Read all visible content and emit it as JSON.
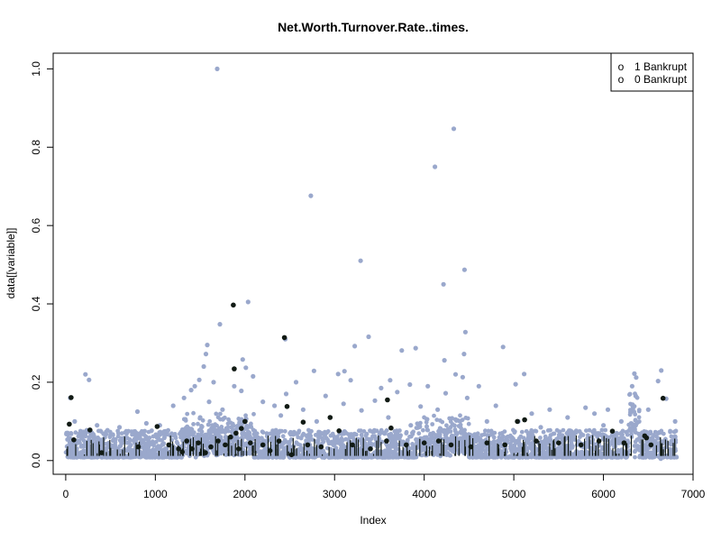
{
  "chart_data": {
    "type": "scatter",
    "title": "Net.Worth.Turnover.Rate..times.",
    "xlabel": "Index",
    "ylabel": "data[[variable]]",
    "xlim": [
      -140,
      7000
    ],
    "ylim": [
      -0.035,
      1.04
    ],
    "xticks": [
      0,
      1000,
      2000,
      3000,
      4000,
      5000,
      6000,
      7000
    ],
    "xtick_labels": [
      "0",
      "1000",
      "2000",
      "3000",
      "4000",
      "5000",
      "6000",
      "7000"
    ],
    "yticks": [
      0.0,
      0.2,
      0.4,
      0.6,
      0.8,
      1.0
    ],
    "ytick_labels": [
      "0.0",
      "0.2",
      "0.4",
      "0.6",
      "0.8",
      "1.0"
    ],
    "grid": false,
    "legend": {
      "position": "top-right",
      "entries": [
        {
          "label": "1 Bankrupt",
          "symbol": "o"
        },
        {
          "label": "0 Bankrupt",
          "symbol": "o"
        }
      ]
    },
    "series": [
      {
        "color": "#9aa8cc",
        "points": [
          [
            1690,
            1.0
          ],
          [
            4330,
            0.847
          ],
          [
            4120,
            0.75
          ],
          [
            2735,
            0.676
          ],
          [
            3290,
            0.51
          ],
          [
            4450,
            0.487
          ],
          [
            4215,
            0.45
          ],
          [
            2035,
            0.405
          ],
          [
            1720,
            0.348
          ],
          [
            4460,
            0.328
          ],
          [
            3380,
            0.316
          ],
          [
            2450,
            0.31
          ],
          [
            1580,
            0.295
          ],
          [
            3905,
            0.287
          ],
          [
            3225,
            0.292
          ],
          [
            4880,
            0.29
          ],
          [
            3750,
            0.281
          ],
          [
            4445,
            0.272
          ],
          [
            1565,
            0.272
          ],
          [
            1975,
            0.258
          ],
          [
            4225,
            0.256
          ],
          [
            2010,
            0.237
          ],
          [
            1540,
            0.24
          ],
          [
            2770,
            0.229
          ],
          [
            3110,
            0.228
          ],
          [
            3040,
            0.221
          ],
          [
            6345,
            0.222
          ],
          [
            6645,
            0.23
          ],
          [
            5115,
            0.221
          ],
          [
            220,
            0.22
          ],
          [
            260,
            0.206
          ],
          [
            2090,
            0.215
          ],
          [
            1490,
            0.206
          ],
          [
            4350,
            0.22
          ],
          [
            4430,
            0.213
          ],
          [
            6365,
            0.212
          ],
          [
            6610,
            0.203
          ],
          [
            1650,
            0.2
          ],
          [
            3180,
            0.205
          ],
          [
            3620,
            0.205
          ],
          [
            2570,
            0.2
          ],
          [
            3840,
            0.194
          ],
          [
            5020,
            0.195
          ],
          [
            1440,
            0.19
          ],
          [
            1880,
            0.19
          ],
          [
            3520,
            0.185
          ],
          [
            4040,
            0.19
          ],
          [
            4610,
            0.19
          ],
          [
            6320,
            0.19
          ],
          [
            1400,
            0.18
          ],
          [
            1960,
            0.178
          ],
          [
            2460,
            0.17
          ],
          [
            2900,
            0.165
          ],
          [
            3700,
            0.175
          ],
          [
            4240,
            0.172
          ],
          [
            50,
            0.16
          ],
          [
            1320,
            0.16
          ],
          [
            1600,
            0.15
          ],
          [
            2200,
            0.15
          ],
          [
            3450,
            0.153
          ],
          [
            4480,
            0.16
          ],
          [
            6360,
            0.165
          ],
          [
            6700,
            0.158
          ],
          [
            1200,
            0.14
          ],
          [
            2330,
            0.14
          ],
          [
            3100,
            0.145
          ],
          [
            3960,
            0.138
          ],
          [
            4800,
            0.14
          ],
          [
            5400,
            0.13
          ],
          [
            5800,
            0.135
          ],
          [
            6050,
            0.13
          ],
          [
            800,
            0.125
          ],
          [
            1750,
            0.13
          ],
          [
            2650,
            0.13
          ],
          [
            3300,
            0.128
          ],
          [
            4150,
            0.13
          ],
          [
            5200,
            0.12
          ],
          [
            5900,
            0.12
          ],
          [
            6500,
            0.13
          ],
          [
            6800,
            0.1
          ],
          [
            100,
            0.1
          ],
          [
            350,
            0.09
          ],
          [
            600,
            0.085
          ],
          [
            900,
            0.095
          ],
          [
            1050,
            0.09
          ],
          [
            1500,
            0.11
          ],
          [
            2400,
            0.115
          ],
          [
            2800,
            0.1
          ],
          [
            3600,
            0.11
          ],
          [
            4350,
            0.105
          ],
          [
            4700,
            0.1
          ],
          [
            5050,
            0.1
          ],
          [
            5600,
            0.11
          ],
          [
            6200,
            0.1
          ],
          [
            6640,
            0.005
          ],
          [
            700,
            0.075
          ],
          [
            1850,
            0.085
          ],
          [
            3850,
            0.09
          ],
          [
            5300,
            0.085
          ],
          [
            6000,
            0.09
          ]
        ]
      },
      {
        "color": "#111a14",
        "points": [
          [
            1870,
            0.397
          ],
          [
            2440,
            0.314
          ],
          [
            1880,
            0.234
          ],
          [
            60,
            0.161
          ],
          [
            3590,
            0.155
          ],
          [
            6665,
            0.159
          ],
          [
            2470,
            0.138
          ],
          [
            40,
            0.093
          ],
          [
            2000,
            0.1
          ],
          [
            1960,
            0.082
          ],
          [
            5120,
            0.104
          ],
          [
            5040,
            0.1
          ],
          [
            2650,
            0.098
          ],
          [
            2950,
            0.11
          ],
          [
            3630,
            0.083
          ],
          [
            270,
            0.078
          ],
          [
            1020,
            0.087
          ],
          [
            3050,
            0.076
          ],
          [
            6100,
            0.075
          ],
          [
            6460,
            0.063
          ],
          [
            6480,
            0.058
          ],
          [
            90,
            0.053
          ],
          [
            400,
            0.02
          ],
          [
            810,
            0.035
          ],
          [
            1150,
            0.04
          ],
          [
            1260,
            0.03
          ],
          [
            1300,
            0.022
          ],
          [
            1350,
            0.05
          ],
          [
            1410,
            0.03
          ],
          [
            1480,
            0.045
          ],
          [
            1560,
            0.02
          ],
          [
            1620,
            0.035
          ],
          [
            1700,
            0.05
          ],
          [
            1780,
            0.04
          ],
          [
            1840,
            0.06
          ],
          [
            1900,
            0.07
          ],
          [
            1930,
            0.03
          ],
          [
            2060,
            0.045
          ],
          [
            2200,
            0.04
          ],
          [
            2280,
            0.025
          ],
          [
            2380,
            0.05
          ],
          [
            2520,
            0.015
          ],
          [
            2700,
            0.04
          ],
          [
            2850,
            0.035
          ],
          [
            3200,
            0.04
          ],
          [
            3400,
            0.03
          ],
          [
            3580,
            0.05
          ],
          [
            3800,
            0.04
          ],
          [
            4000,
            0.045
          ],
          [
            4160,
            0.05
          ],
          [
            4300,
            0.04
          ],
          [
            4520,
            0.035
          ],
          [
            4700,
            0.045
          ],
          [
            4900,
            0.04
          ],
          [
            5250,
            0.05
          ],
          [
            5500,
            0.045
          ],
          [
            5750,
            0.04
          ],
          [
            5950,
            0.05
          ],
          [
            6230,
            0.045
          ],
          [
            6530,
            0.04
          ]
        ]
      }
    ]
  }
}
